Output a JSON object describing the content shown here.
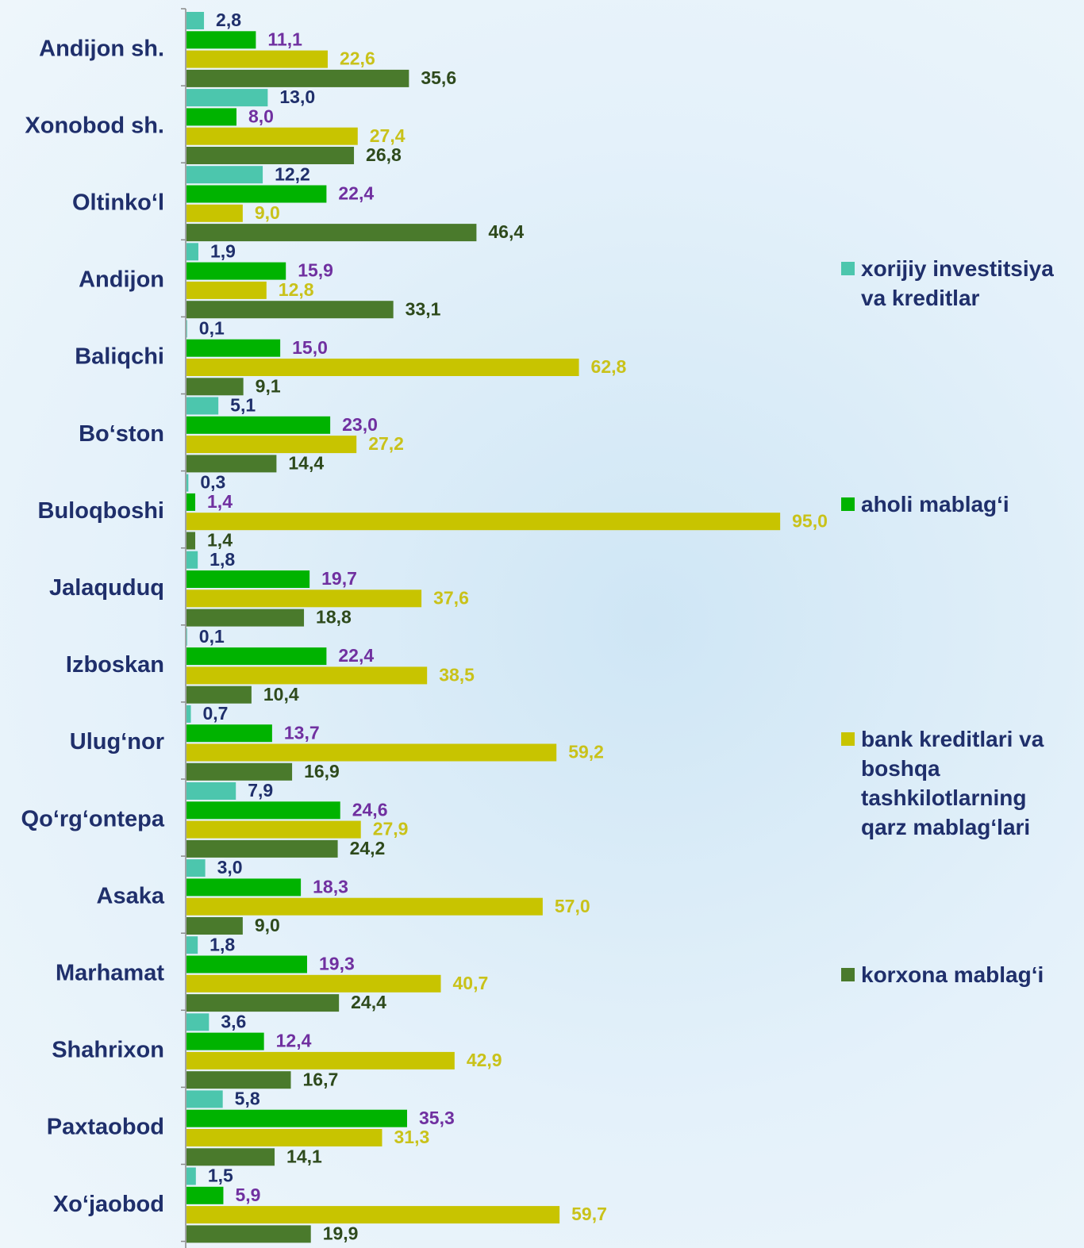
{
  "chart_data": {
    "type": "bar",
    "orientation": "horizontal",
    "categories": [
      "Andijon sh.",
      "Xonobod sh.",
      "Oltinko‘l",
      "Andijon",
      "Baliqchi",
      "Bo‘ston",
      "Buloqboshi",
      "Jalaquduq",
      "Izboskan",
      "Ulug‘nor",
      "Qo‘rg‘ontepa",
      "Asaka",
      "Marhamat",
      "Shahrixon",
      "Paxtaobod",
      "Xo‘jaobod"
    ],
    "series": [
      {
        "name": "xorijiy investitsiya va kreditlar",
        "color": "#4cc6ad",
        "label_color": "#1f2f6b",
        "values": [
          2.8,
          13.0,
          12.2,
          1.9,
          0.1,
          5.1,
          0.3,
          1.8,
          0.1,
          0.7,
          7.9,
          3.0,
          1.8,
          3.6,
          5.8,
          1.5
        ],
        "value_labels": [
          "2,8",
          "13,0",
          "12,2",
          "1,9",
          "0,1",
          "5,1",
          "0,3",
          "1,8",
          "0,1",
          "0,7",
          "7,9",
          "3,0",
          "1,8",
          "3,6",
          "5,8",
          "1,5"
        ]
      },
      {
        "name": "aholi mablag‘i",
        "color": "#00b300",
        "label_color": "#7030a0",
        "values": [
          11.1,
          8.0,
          22.4,
          15.9,
          15.0,
          23.0,
          1.4,
          19.7,
          22.4,
          13.7,
          24.6,
          18.3,
          19.3,
          12.4,
          35.3,
          5.9
        ],
        "value_labels": [
          "11,1",
          "8,0",
          "22,4",
          "15,9",
          "15,0",
          "23,0",
          "1,4",
          "19,7",
          "22,4",
          "13,7",
          "24,6",
          "18,3",
          "19,3",
          "12,4",
          "35,3",
          "5,9"
        ]
      },
      {
        "name": "bank kreditlari va boshqa tashkilotlarning qarz mablag‘lari",
        "color": "#c8c400",
        "label_color": "#c9c21a",
        "values": [
          22.6,
          27.4,
          9.0,
          12.8,
          62.8,
          27.2,
          95.0,
          37.6,
          38.5,
          59.2,
          27.9,
          57.0,
          40.7,
          42.9,
          31.3,
          59.7
        ],
        "value_labels": [
          "22,6",
          "27,4",
          "9,0",
          "12,8",
          "62,8",
          "27,2",
          "95,0",
          "37,6",
          "38,5",
          "59,2",
          "27,9",
          "57,0",
          "40,7",
          "42,9",
          "31,3",
          "59,7"
        ]
      },
      {
        "name": "korxona mablag‘i",
        "color": "#4a7a2c",
        "label_color": "#2e4a1c",
        "values": [
          35.6,
          26.8,
          46.4,
          33.1,
          9.1,
          14.4,
          1.4,
          18.8,
          10.4,
          16.9,
          24.2,
          9.0,
          24.4,
          16.7,
          14.1,
          19.9
        ],
        "value_labels": [
          "35,6",
          "26,8",
          "46,4",
          "33,1",
          "9,1",
          "14,4",
          "1,4",
          "18,8",
          "10,4",
          "16,9",
          "24,2",
          "9,0",
          "24,4",
          "16,7",
          "14,1",
          "19,9"
        ]
      }
    ],
    "legend": "right"
  }
}
